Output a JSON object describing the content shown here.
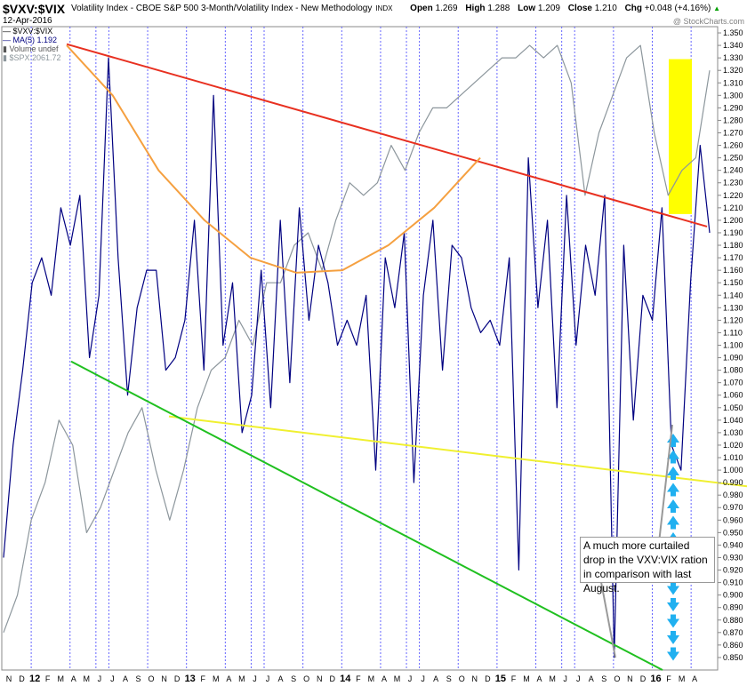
{
  "header": {
    "symbol": "$VXV:$VIX",
    "description": "Volatility Index - CBOE S&P 500 3-Month/Volatility Index - New Methodology",
    "exchange": "INDX",
    "date": "12-Apr-2016",
    "open_label": "Open",
    "open": "1.269",
    "high_label": "High",
    "high": "1.288",
    "low_label": "Low",
    "low": "1.209",
    "close_label": "Close",
    "close": "1.210",
    "chg_label": "Chg",
    "chg": "+0.048 (+4.16%)",
    "chg_arrow": "▲",
    "brand": "@ StockCharts.com"
  },
  "legend": {
    "line1": "$VXV:$VIX",
    "line2": "MA(5) 1.192",
    "line3": "Volume undef",
    "line4": "$SPX 2061.72"
  },
  "annotation": {
    "text": "A much more curtailed drop in the VXV:VIX ration in comparison with last August."
  },
  "colors": {
    "ratio_line": "#000080",
    "spx_line": "#8c969c",
    "resistance": "#e83020",
    "arc": "#f5a040",
    "support_yellow": "#f0f030",
    "support_green": "#20c020",
    "highlight": "#ffff00",
    "arrows": "#20b0f0",
    "month_grid": "#6666ff"
  },
  "chart_data": {
    "type": "line",
    "y_axis": {
      "range": [
        0.84,
        1.355
      ],
      "ticks": [
        "1.350",
        "1.340",
        "1.330",
        "1.320",
        "1.310",
        "1.300",
        "1.290",
        "1.280",
        "1.270",
        "1.260",
        "1.250",
        "1.240",
        "1.230",
        "1.220",
        "1.210",
        "1.200",
        "1.190",
        "1.180",
        "1.170",
        "1.160",
        "1.150",
        "1.140",
        "1.130",
        "1.120",
        "1.110",
        "1.100",
        "1.090",
        "1.080",
        "1.070",
        "1.060",
        "1.050",
        "1.040",
        "1.030",
        "1.020",
        "1.010",
        "1.000",
        "0.990",
        "0.980",
        "0.970",
        "0.960",
        "0.950",
        "0.940",
        "0.930",
        "0.920",
        "0.910",
        "0.900",
        "0.890",
        "0.880",
        "0.870",
        "0.860",
        "0.850"
      ]
    },
    "x_axis": {
      "labels": [
        "N",
        "D",
        "12",
        "F",
        "M",
        "A",
        "M",
        "J",
        "J",
        "A",
        "S",
        "O",
        "N",
        "D",
        "13",
        "F",
        "M",
        "A",
        "M",
        "J",
        "J",
        "A",
        "S",
        "O",
        "N",
        "D",
        "14",
        "F",
        "M",
        "A",
        "M",
        "J",
        "J",
        "A",
        "S",
        "O",
        "N",
        "D",
        "15",
        "F",
        "M",
        "A",
        "M",
        "J",
        "J",
        "A",
        "S",
        "O",
        "N",
        "D",
        "16",
        "F",
        "M",
        "A"
      ],
      "bold_labels": [
        "12",
        "13",
        "14",
        "15",
        "16"
      ]
    },
    "series": [
      {
        "name": "$VXV:$VIX",
        "values": [
          0.93,
          1.02,
          1.08,
          1.15,
          1.17,
          1.14,
          1.21,
          1.18,
          1.22,
          1.09,
          1.14,
          1.33,
          1.17,
          1.06,
          1.13,
          1.16,
          1.16,
          1.08,
          1.09,
          1.12,
          1.2,
          1.08,
          1.3,
          1.1,
          1.15,
          1.03,
          1.06,
          1.16,
          1.05,
          1.2,
          1.07,
          1.21,
          1.12,
          1.18,
          1.15,
          1.1,
          1.12,
          1.1,
          1.14,
          1.0,
          1.17,
          1.13,
          1.19,
          0.99,
          1.14,
          1.2,
          1.08,
          1.18,
          1.17,
          1.13,
          1.11,
          1.12,
          1.1,
          1.17,
          0.92,
          1.25,
          1.13,
          1.2,
          1.05,
          1.22,
          1.1,
          1.18,
          1.14,
          1.22,
          0.85,
          1.18,
          1.04,
          1.14,
          1.12,
          1.21,
          1.02,
          1.0,
          1.15,
          1.26,
          1.19
        ]
      },
      {
        "name": "$SPX",
        "values": [
          0.87,
          0.9,
          0.96,
          0.99,
          1.04,
          1.02,
          0.95,
          0.97,
          1.0,
          1.03,
          1.05,
          1.0,
          0.96,
          1.0,
          1.05,
          1.08,
          1.09,
          1.12,
          1.1,
          1.15,
          1.15,
          1.18,
          1.19,
          1.16,
          1.2,
          1.23,
          1.22,
          1.23,
          1.26,
          1.24,
          1.27,
          1.29,
          1.29,
          1.3,
          1.31,
          1.32,
          1.33,
          1.33,
          1.34,
          1.33,
          1.34,
          1.31,
          1.22,
          1.27,
          1.3,
          1.33,
          1.34,
          1.27,
          1.22,
          1.24,
          1.25,
          1.32
        ]
      },
      {
        "name": "Resistance",
        "values": [
          1.341,
          1.195
        ]
      },
      {
        "name": "Support",
        "values": [
          1.043,
          0.987
        ]
      },
      {
        "name": "Lower support",
        "values": [
          1.087,
          0.84
        ]
      },
      {
        "name": "Arc",
        "values": [
          1.34,
          1.3,
          1.24,
          1.2,
          1.17,
          1.158,
          1.16,
          1.18,
          1.21,
          1.25
        ]
      }
    ],
    "highlight_box": {
      "y_range": [
        1.205,
        1.329
      ]
    },
    "grid": false
  }
}
